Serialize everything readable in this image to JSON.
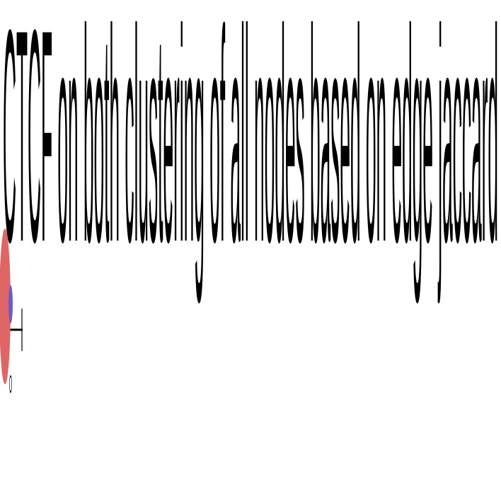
{
  "chart_data": {
    "type": "scatter",
    "title": "CTCF on both clustering of all nodes based on edge jaccard",
    "tick_labels": [
      "0"
    ],
    "series": [
      {
        "values": [
          {
            "x": 0,
            "y": 0
          }
        ],
        "color": "#e06666"
      },
      {
        "values": [
          {
            "x": 0,
            "y": 0
          }
        ],
        "color": "#6a5acd"
      }
    ]
  }
}
